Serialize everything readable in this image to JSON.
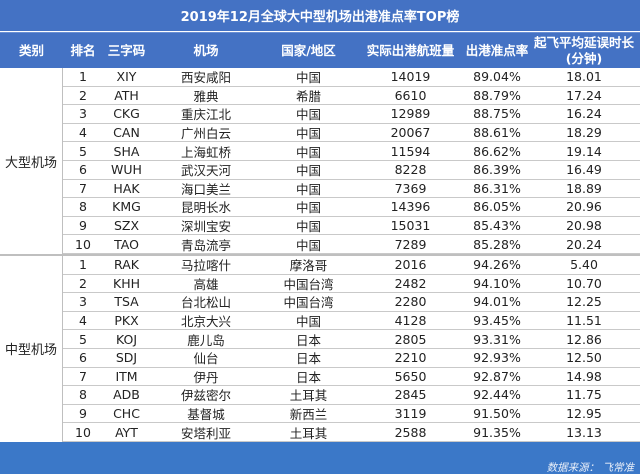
{
  "title": "2019年12月全球大中型机场出港准点率TOP榜",
  "columns": {
    "category": "类别",
    "rank": "排名",
    "code": "三字码",
    "airport": "机场",
    "country": "国家/地区",
    "flights": "实际出港航班量",
    "on_time_rate": "出港准点率",
    "avg_delay_line1": "起飞平均延误时长",
    "avg_delay_line2": "(分钟)"
  },
  "groups": [
    {
      "label": "大型机场",
      "rows": [
        {
          "rank": "1",
          "code": "XIY",
          "airport": "西安咸阳",
          "country": "中国",
          "flights": "14019",
          "rate": "89.04%",
          "delay": "18.01"
        },
        {
          "rank": "2",
          "code": "ATH",
          "airport": "雅典",
          "country": "希腊",
          "flights": "6610",
          "rate": "88.79%",
          "delay": "17.24"
        },
        {
          "rank": "3",
          "code": "CKG",
          "airport": "重庆江北",
          "country": "中国",
          "flights": "12989",
          "rate": "88.75%",
          "delay": "16.24"
        },
        {
          "rank": "4",
          "code": "CAN",
          "airport": "广州白云",
          "country": "中国",
          "flights": "20067",
          "rate": "88.61%",
          "delay": "18.29"
        },
        {
          "rank": "5",
          "code": "SHA",
          "airport": "上海虹桥",
          "country": "中国",
          "flights": "11594",
          "rate": "86.62%",
          "delay": "19.14"
        },
        {
          "rank": "6",
          "code": "WUH",
          "airport": "武汉天河",
          "country": "中国",
          "flights": "8228",
          "rate": "86.39%",
          "delay": "16.49"
        },
        {
          "rank": "7",
          "code": "HAK",
          "airport": "海口美兰",
          "country": "中国",
          "flights": "7369",
          "rate": "86.31%",
          "delay": "18.89"
        },
        {
          "rank": "8",
          "code": "KMG",
          "airport": "昆明长水",
          "country": "中国",
          "flights": "14396",
          "rate": "86.05%",
          "delay": "20.96"
        },
        {
          "rank": "9",
          "code": "SZX",
          "airport": "深圳宝安",
          "country": "中国",
          "flights": "15031",
          "rate": "85.43%",
          "delay": "20.98"
        },
        {
          "rank": "10",
          "code": "TAO",
          "airport": "青岛流亭",
          "country": "中国",
          "flights": "7289",
          "rate": "85.28%",
          "delay": "20.24"
        }
      ]
    },
    {
      "label": "中型机场",
      "rows": [
        {
          "rank": "1",
          "code": "RAK",
          "airport": "马拉喀什",
          "country": "摩洛哥",
          "flights": "2016",
          "rate": "94.26%",
          "delay": "5.40"
        },
        {
          "rank": "2",
          "code": "KHH",
          "airport": "高雄",
          "country": "中国台湾",
          "flights": "2482",
          "rate": "94.10%",
          "delay": "10.70"
        },
        {
          "rank": "3",
          "code": "TSA",
          "airport": "台北松山",
          "country": "中国台湾",
          "flights": "2280",
          "rate": "94.01%",
          "delay": "12.25"
        },
        {
          "rank": "4",
          "code": "PKX",
          "airport": "北京大兴",
          "country": "中国",
          "flights": "4128",
          "rate": "93.45%",
          "delay": "11.51"
        },
        {
          "rank": "5",
          "code": "KOJ",
          "airport": "鹿儿岛",
          "country": "日本",
          "flights": "2805",
          "rate": "93.31%",
          "delay": "12.86"
        },
        {
          "rank": "6",
          "code": "SDJ",
          "airport": "仙台",
          "country": "日本",
          "flights": "2210",
          "rate": "92.93%",
          "delay": "12.50"
        },
        {
          "rank": "7",
          "code": "ITM",
          "airport": "伊丹",
          "country": "日本",
          "flights": "5650",
          "rate": "92.87%",
          "delay": "14.98"
        },
        {
          "rank": "8",
          "code": "ADB",
          "airport": "伊兹密尔",
          "country": "土耳其",
          "flights": "2845",
          "rate": "92.44%",
          "delay": "11.75"
        },
        {
          "rank": "9",
          "code": "CHC",
          "airport": "基督城",
          "country": "新西兰",
          "flights": "3119",
          "rate": "91.50%",
          "delay": "12.95"
        },
        {
          "rank": "10",
          "code": "AYT",
          "airport": "安塔利亚",
          "country": "土耳其",
          "flights": "2588",
          "rate": "91.35%",
          "delay": "13.13"
        }
      ]
    }
  ],
  "footer": {
    "source": "数据来源： 飞常准"
  },
  "colors": {
    "header_bg": "#4472c4",
    "footer_bg": "#3b78c8",
    "grid": "#c9c9c9"
  }
}
